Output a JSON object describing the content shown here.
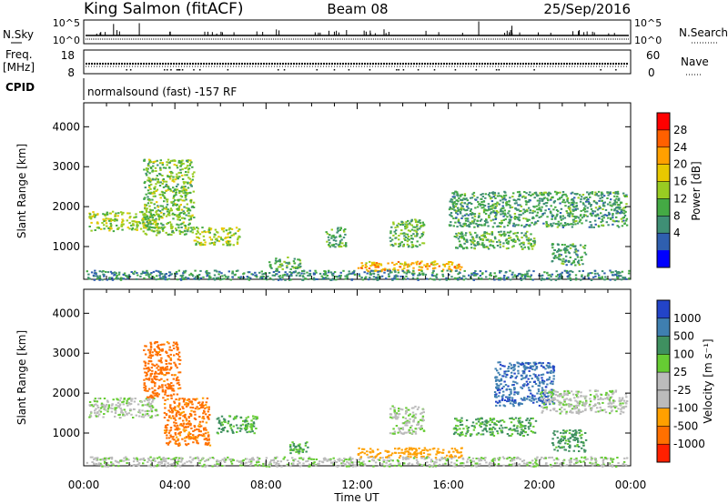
{
  "header": {
    "station": "King Salmon (fitACF)",
    "beam": "Beam 08",
    "date": "25/Sep/2016"
  },
  "noise_panel": {
    "left_label": "N.Sky",
    "right_label": "N.Search",
    "left_ticks": [
      "10^5",
      "10^0"
    ],
    "right_ticks": [
      "10^5",
      "10^0"
    ]
  },
  "freq_panel": {
    "left_label_line1": "Freq.",
    "left_label_line2": "[MHz]",
    "left_ticks": [
      "18",
      "8"
    ],
    "right_label": "Nave",
    "right_ticks": [
      "60",
      "0"
    ]
  },
  "cpid": {
    "label": "CPID",
    "text": "normalsound (fast) -157 RF"
  },
  "power_colorbar": {
    "label": "Power [dB]",
    "ticks": [
      "28",
      "24",
      "20",
      "16",
      "12",
      "8",
      "4"
    ],
    "colors": [
      "#ff0000",
      "#ff6000",
      "#ffa000",
      "#e8c800",
      "#99cc22",
      "#44aa44",
      "#3f8f75",
      "#2f5faf",
      "#0000ff"
    ]
  },
  "velocity_colorbar": {
    "label": "Velocity [m s⁻¹]",
    "ticks": [
      "1000",
      "500",
      "100",
      "25",
      "-25",
      "-100",
      "-500",
      "-1000"
    ],
    "colors": [
      "#2344c8",
      "#3f7fb0",
      "#3f9060",
      "#66cc33",
      "#bbbbbb",
      "#bbbbbb",
      "#ffa000",
      "#ff7000",
      "#ff2000"
    ]
  },
  "axes": {
    "xlabel": "Time UT",
    "ylabel_top": "Slant Range [km]",
    "ylabel_bottom": "Slant Range [km]",
    "x_tick_labels": [
      "00:00",
      "04:00",
      "08:00",
      "12:00",
      "16:00",
      "20:00",
      "00:00"
    ],
    "y_tick_labels": [
      "1000",
      "2000",
      "3000",
      "4000"
    ]
  },
  "chart_data": [
    {
      "type": "heatmap",
      "title": "Power [dB]",
      "xlabel": "Time UT",
      "ylabel": "Slant Range [km]",
      "xlim": [
        0,
        24
      ],
      "ylim": [
        180,
        4600
      ],
      "clim": [
        0,
        32
      ],
      "regions": [
        {
          "t0": 0.2,
          "t1": 3.2,
          "r0": 1400,
          "r1": 1900,
          "value": 14
        },
        {
          "t0": 2.6,
          "t1": 4.8,
          "r0": 1300,
          "r1": 3200,
          "value": 12
        },
        {
          "t0": 4.8,
          "t1": 6.8,
          "r0": 1050,
          "r1": 1500,
          "value": 14
        },
        {
          "t0": 8.0,
          "t1": 9.5,
          "r0": 450,
          "r1": 750,
          "value": 10
        },
        {
          "t0": 10.6,
          "t1": 11.5,
          "r0": 1000,
          "r1": 1500,
          "value": 9
        },
        {
          "t0": 13.4,
          "t1": 14.9,
          "r0": 1000,
          "r1": 1700,
          "value": 11
        },
        {
          "t0": 12.0,
          "t1": 16.6,
          "r0": 400,
          "r1": 650,
          "value": 20
        },
        {
          "t0": 16.0,
          "t1": 23.8,
          "r0": 1500,
          "r1": 2400,
          "value": 8
        },
        {
          "t0": 16.2,
          "t1": 19.8,
          "r0": 950,
          "r1": 1400,
          "value": 10
        },
        {
          "t0": 20.5,
          "t1": 22.0,
          "r0": 550,
          "r1": 1100,
          "value": 8
        },
        {
          "t0": 0.1,
          "t1": 23.9,
          "r0": 180,
          "r1": 420,
          "value": 6
        }
      ]
    },
    {
      "type": "heatmap",
      "title": "Velocity [m s⁻¹]",
      "xlabel": "Time UT",
      "ylabel": "Slant Range [km]",
      "xlim": [
        0,
        24
      ],
      "ylim": [
        180,
        4600
      ],
      "clim": [
        -1000,
        1000
      ],
      "regions": [
        {
          "t0": 0.2,
          "t1": 3.2,
          "r0": 1400,
          "r1": 1900,
          "value": 0
        },
        {
          "t0": 2.6,
          "t1": 4.2,
          "r0": 1900,
          "r1": 3300,
          "value": -700
        },
        {
          "t0": 3.5,
          "t1": 5.5,
          "r0": 700,
          "r1": 1900,
          "value": -600
        },
        {
          "t0": 5.8,
          "t1": 7.6,
          "r0": 1000,
          "r1": 1450,
          "value": 100
        },
        {
          "t0": 9.0,
          "t1": 9.8,
          "r0": 500,
          "r1": 800,
          "value": 100
        },
        {
          "t0": 12.0,
          "t1": 16.6,
          "r0": 400,
          "r1": 650,
          "value": -200
        },
        {
          "t0": 13.4,
          "t1": 14.9,
          "r0": 1000,
          "r1": 1700,
          "value": 0
        },
        {
          "t0": 16.2,
          "t1": 19.8,
          "r0": 950,
          "r1": 1400,
          "value": 100
        },
        {
          "t0": 18.0,
          "t1": 20.6,
          "r0": 1700,
          "r1": 2800,
          "value": 900
        },
        {
          "t0": 20.0,
          "t1": 23.8,
          "r0": 1500,
          "r1": 2100,
          "value": 0
        },
        {
          "t0": 20.5,
          "t1": 22.0,
          "r0": 550,
          "r1": 1100,
          "value": 150
        },
        {
          "t0": 0.1,
          "t1": 23.9,
          "r0": 180,
          "r1": 420,
          "value": 0
        }
      ]
    }
  ]
}
